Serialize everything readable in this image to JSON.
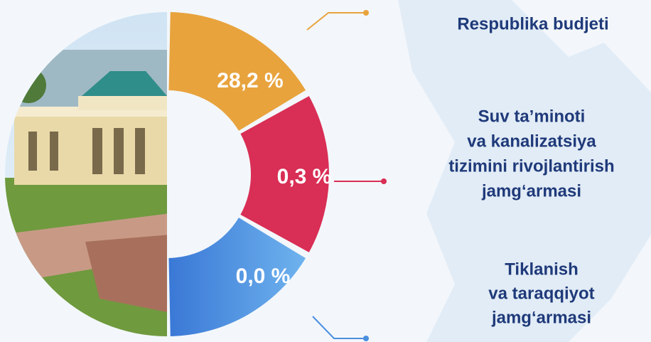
{
  "segments": [
    {
      "value": "28,2 %",
      "label": [
        "Respublika budjeti"
      ]
    },
    {
      "value": "0,3 %",
      "label": [
        "Suv ta’minoti",
        "va kanalizatsiya",
        "tizimini rivojlantirish",
        "jamg‘armasi"
      ]
    },
    {
      "value": "0,0 %",
      "label": [
        "Tiklanish",
        "va taraqqiyot",
        "jamg‘armasi"
      ]
    }
  ]
}
